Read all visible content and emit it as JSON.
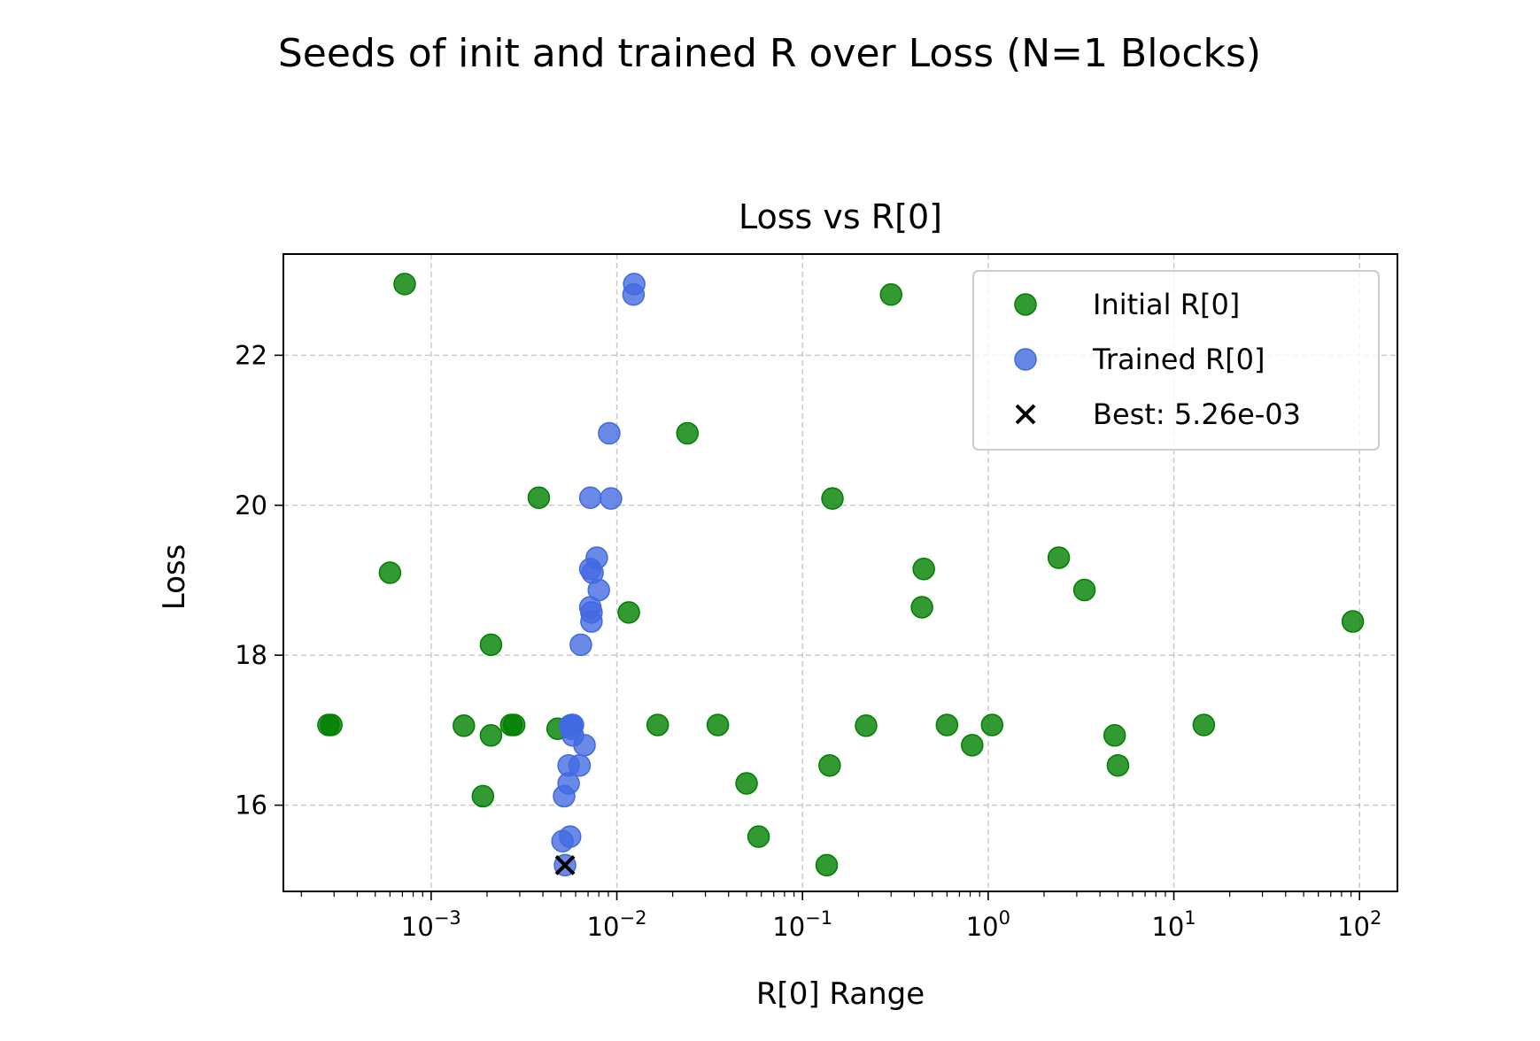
{
  "figure": {
    "suptitle": "Seeds of init and trained R over Loss (N=1 Blocks)"
  },
  "chart_data": {
    "type": "scatter",
    "title": "Loss vs R[0]",
    "xlabel": "R[0] Range",
    "ylabel": "Loss",
    "xscale": "log",
    "xlim": [
      0.00016,
      160
    ],
    "ylim": [
      14.85,
      23.35
    ],
    "xticks": [
      {
        "value": 0.001,
        "base": "10",
        "exp": "−3"
      },
      {
        "value": 0.01,
        "base": "10",
        "exp": "−2"
      },
      {
        "value": 0.1,
        "base": "10",
        "exp": "−1"
      },
      {
        "value": 1,
        "base": "10",
        "exp": "0"
      },
      {
        "value": 10,
        "base": "10",
        "exp": "1"
      },
      {
        "value": 100,
        "base": "10",
        "exp": "2"
      }
    ],
    "yticks": [
      {
        "value": 16,
        "label": "16"
      },
      {
        "value": 18,
        "label": "18"
      },
      {
        "value": 20,
        "label": "20"
      },
      {
        "value": 22,
        "label": "22"
      }
    ],
    "grid": true,
    "legend_position": "upper right",
    "series": [
      {
        "name": "Initial R[0]",
        "color": "#008000",
        "marker": "circle",
        "points": [
          [
            0.00072,
            22.95
          ],
          [
            0.00028,
            17.07
          ],
          [
            0.00029,
            17.07
          ],
          [
            0.0006,
            19.1
          ],
          [
            0.0021,
            18.14
          ],
          [
            0.0015,
            17.06
          ],
          [
            0.0021,
            16.93
          ],
          [
            0.0019,
            16.12
          ],
          [
            0.0027,
            17.07
          ],
          [
            0.0028,
            17.07
          ],
          [
            0.0038,
            20.1
          ],
          [
            0.0048,
            17.02
          ],
          [
            0.0116,
            18.57
          ],
          [
            0.0166,
            17.07
          ],
          [
            0.024,
            20.96
          ],
          [
            0.035,
            17.07
          ],
          [
            0.05,
            16.29
          ],
          [
            0.058,
            15.58
          ],
          [
            0.135,
            15.2
          ],
          [
            0.14,
            16.53
          ],
          [
            0.145,
            20.09
          ],
          [
            0.22,
            17.06
          ],
          [
            0.3,
            22.81
          ],
          [
            0.44,
            18.64
          ],
          [
            0.45,
            19.15
          ],
          [
            0.6,
            17.07
          ],
          [
            0.82,
            16.8
          ],
          [
            1.05,
            17.07
          ],
          [
            2.4,
            19.3
          ],
          [
            3.3,
            18.87
          ],
          [
            4.8,
            16.93
          ],
          [
            5.0,
            16.53
          ],
          [
            14.5,
            17.07
          ],
          [
            92,
            18.45
          ]
        ]
      },
      {
        "name": "Trained R[0]",
        "color": "#4169e1",
        "marker": "circle",
        "points": [
          [
            0.0124,
            22.95
          ],
          [
            0.0123,
            22.81
          ],
          [
            0.0091,
            20.96
          ],
          [
            0.0072,
            20.1
          ],
          [
            0.0093,
            20.09
          ],
          [
            0.0078,
            19.3
          ],
          [
            0.0072,
            19.15
          ],
          [
            0.0074,
            19.1
          ],
          [
            0.008,
            18.87
          ],
          [
            0.0072,
            18.64
          ],
          [
            0.0073,
            18.57
          ],
          [
            0.0073,
            18.45
          ],
          [
            0.0064,
            18.14
          ],
          [
            0.0057,
            17.07
          ],
          [
            0.0058,
            17.07
          ],
          [
            0.0056,
            17.06
          ],
          [
            0.0057,
            17.02
          ],
          [
            0.0058,
            16.93
          ],
          [
            0.0067,
            16.8
          ],
          [
            0.0055,
            16.53
          ],
          [
            0.0063,
            16.53
          ],
          [
            0.0055,
            16.29
          ],
          [
            0.0052,
            16.12
          ],
          [
            0.0051,
            15.52
          ],
          [
            0.0056,
            15.58
          ],
          [
            0.00526,
            15.2
          ]
        ]
      },
      {
        "name": "Best: 5.26e-03",
        "color": "#000000",
        "marker": "x",
        "points": [
          [
            0.00526,
            15.2
          ]
        ]
      }
    ]
  }
}
